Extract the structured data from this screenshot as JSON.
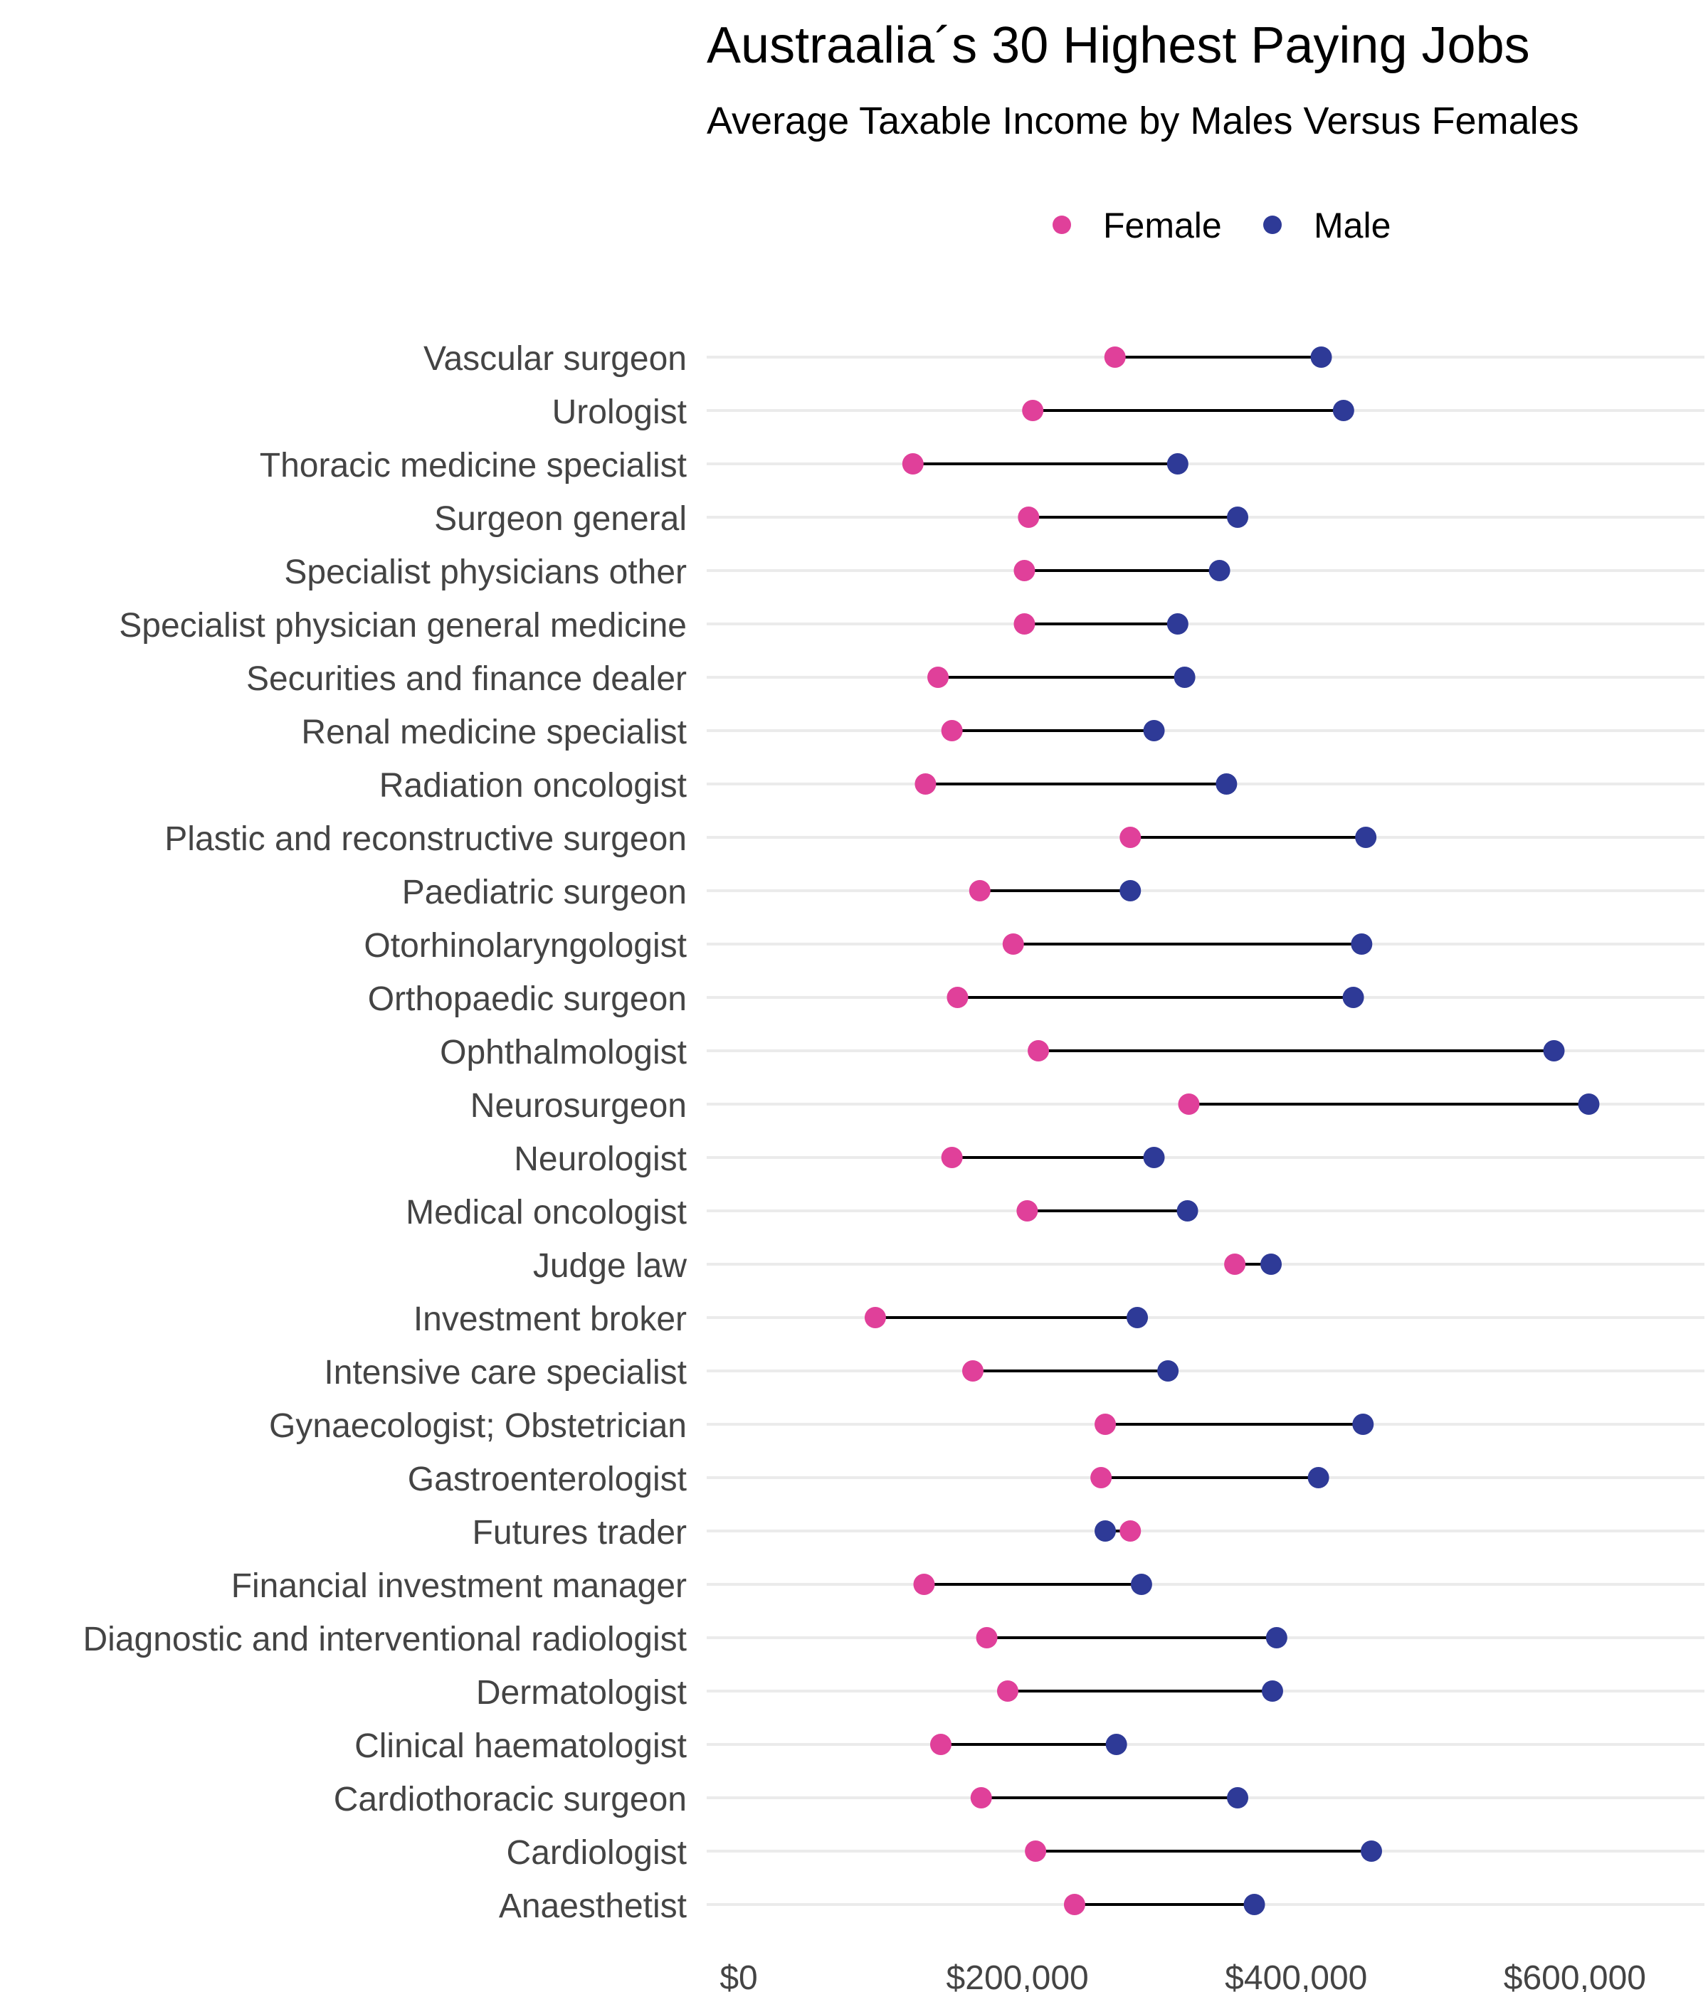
{
  "chart_data": {
    "type": "dumbbell",
    "title": "Austraalia´s 30 Highest Paying Jobs",
    "subtitle": "Average Taxable Income by Males Versus Females",
    "x_tick_labels": [
      "$0",
      "$200,000",
      "$400,000",
      "$600,000"
    ],
    "x_ticks": [
      0,
      200000,
      400000,
      600000
    ],
    "xlim": [
      -23000,
      693000
    ],
    "grid": true,
    "legend_position": "top",
    "colors": {
      "Female": "#e0409a",
      "Male": "#2e3a97"
    },
    "series": [
      {
        "name": "Female",
        "values": [
          270000,
          211000,
          125000,
          208000,
          205000,
          205000,
          143000,
          153000,
          134000,
          281000,
          173000,
          197000,
          157000,
          215000,
          323000,
          153000,
          207000,
          356000,
          98000,
          168000,
          263000,
          260000,
          281000,
          133000,
          178000,
          193000,
          145000,
          174000,
          213000,
          241000
        ]
      },
      {
        "name": "Male",
        "values": [
          418000,
          434000,
          315000,
          358000,
          345000,
          315000,
          320000,
          298000,
          350000,
          450000,
          281000,
          447000,
          441000,
          585000,
          610000,
          298000,
          322000,
          382000,
          286000,
          308000,
          448000,
          416000,
          263000,
          289000,
          386000,
          383000,
          271000,
          358000,
          454000,
          370000
        ]
      }
    ],
    "categories": [
      "Vascular surgeon",
      "Urologist",
      "Thoracic medicine specialist",
      "Surgeon  general",
      "Specialist physicians  other",
      "Specialist physician  general medicine",
      "Securities and finance dealer",
      "Renal medicine specialist",
      "Radiation oncologist",
      "Plastic and reconstructive surgeon",
      "Paediatric surgeon",
      "Otorhinolaryngologist",
      "Orthopaedic surgeon",
      "Ophthalmologist",
      "Neurosurgeon",
      "Neurologist",
      "Medical oncologist",
      "Judge  law",
      "Investment broker",
      "Intensive care specialist",
      "Gynaecologist; Obstetrician",
      "Gastroenterologist",
      "Futures trader",
      "Financial investment manager",
      "Diagnostic and interventional radiologist",
      "Dermatologist",
      "Clinical haematologist",
      "Cardiothoracic surgeon",
      "Cardiologist",
      "Anaesthetist"
    ]
  }
}
